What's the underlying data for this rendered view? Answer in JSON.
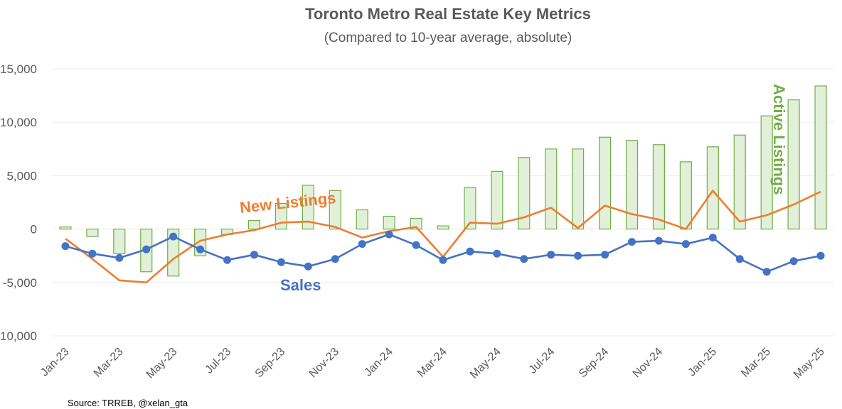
{
  "chart_data": {
    "type": "bar",
    "title": "Toronto Metro Real Estate Key Metrics",
    "subtitle": "(Compared to 10-year average, absolute)",
    "source": "Source: TRREB, @xelan_gta",
    "categories": [
      "Jan-23",
      "Feb-23",
      "Mar-23",
      "Apr-23",
      "May-23",
      "Jun-23",
      "Jul-23",
      "Aug-23",
      "Sep-23",
      "Oct-23",
      "Nov-23",
      "Dec-23",
      "Jan-24",
      "Feb-24",
      "Mar-24",
      "Apr-24",
      "May-24",
      "Jun-24",
      "Jul-24",
      "Aug-24",
      "Sep-24",
      "Oct-24",
      "Nov-24",
      "Dec-24",
      "Jan-25",
      "Feb-25",
      "Mar-25",
      "Apr-25",
      "May-25"
    ],
    "x_tick_labels": [
      "Jan-23",
      "Mar-23",
      "May-23",
      "Jul-23",
      "Sep-23",
      "Nov-23",
      "Jan-24",
      "Mar-24",
      "May-24",
      "Jul-24",
      "Sep-24",
      "Nov-24",
      "Jan-25",
      "Mar-25",
      "May-25"
    ],
    "y_tick_labels": [
      "15,000",
      "10,000",
      "5,000",
      "0",
      "-5,000",
      "-10,000"
    ],
    "ylim": [
      -10000,
      15000
    ],
    "grid": true,
    "series": [
      {
        "name": "Active Listings",
        "kind": "bar",
        "color": "#70AD47",
        "fill": "#E2F0D9",
        "values": [
          200,
          -700,
          -2300,
          -4000,
          -4400,
          -2500,
          -500,
          800,
          2400,
          4100,
          3600,
          1800,
          1200,
          1000,
          300,
          3900,
          5400,
          6700,
          7500,
          7500,
          8600,
          8300,
          7900,
          6300,
          7700,
          8800,
          10600,
          12100,
          13400
        ]
      },
      {
        "name": "New Listings",
        "kind": "line",
        "color": "#ED7D31",
        "values": [
          -900,
          -2800,
          -4800,
          -5000,
          -2800,
          -1100,
          -500,
          -100,
          600,
          700,
          200,
          -800,
          -200,
          200,
          -2600,
          600,
          500,
          1100,
          2000,
          100,
          2200,
          1400,
          900,
          0,
          3600,
          700,
          1300,
          2300,
          3500
        ]
      },
      {
        "name": "Sales",
        "kind": "line-marker",
        "color": "#4472C4",
        "values": [
          -1600,
          -2300,
          -2700,
          -1900,
          -700,
          -1900,
          -2900,
          -2400,
          -3100,
          -3500,
          -2800,
          -1400,
          -500,
          -1500,
          -2900,
          -2100,
          -2300,
          -2800,
          -2400,
          -2500,
          -2400,
          -1200,
          -1100,
          -1400,
          -800,
          -2800,
          -4000,
          -3000,
          -2500
        ]
      }
    ]
  }
}
